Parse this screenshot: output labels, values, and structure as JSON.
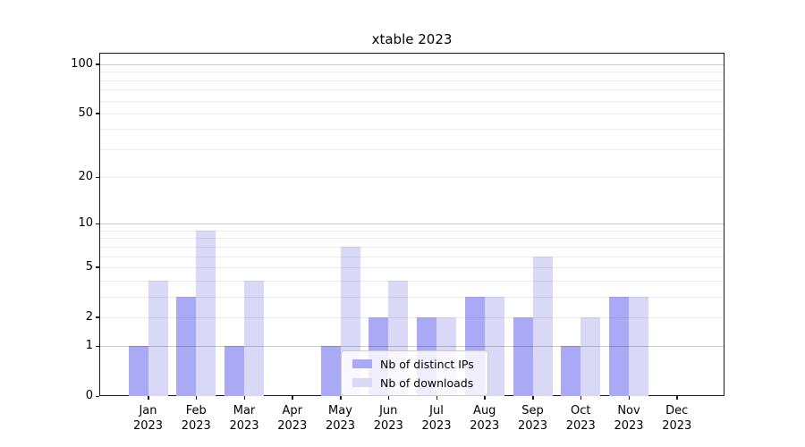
{
  "chart_data": {
    "type": "bar",
    "title": "xtable 2023",
    "categories": [
      "Jan",
      "Feb",
      "Mar",
      "Apr",
      "May",
      "Jun",
      "Jul",
      "Aug",
      "Sep",
      "Oct",
      "Nov",
      "Dec"
    ],
    "category_year": "2023",
    "series": [
      {
        "name": "Nb of distinct IPs",
        "color": "#a9a9f6",
        "values": [
          1,
          3,
          1,
          0,
          1,
          2,
          2,
          3,
          2,
          1,
          3,
          0
        ]
      },
      {
        "name": "Nb of downloads",
        "color": "#d9d9f7",
        "values": [
          4,
          9,
          4,
          0,
          7,
          4,
          2,
          3,
          6,
          2,
          3,
          0
        ]
      }
    ],
    "y_ticks": [
      0,
      1,
      2,
      5,
      10,
      20,
      50,
      100
    ],
    "scale": "log1p",
    "ylim": [
      0,
      116
    ],
    "gridlines": {
      "major": [
        1,
        10,
        100
      ],
      "minor": [
        2,
        3,
        4,
        5,
        6,
        7,
        8,
        9,
        20,
        30,
        40,
        50,
        60,
        70,
        80,
        90
      ]
    },
    "grid": "horizontal",
    "legend_position": "lower center",
    "colors": {
      "axis": "#1a1a1a",
      "grid_major": "#c8c8c8",
      "grid_minor": "#ebebeb",
      "background": "#ffffff"
    }
  }
}
